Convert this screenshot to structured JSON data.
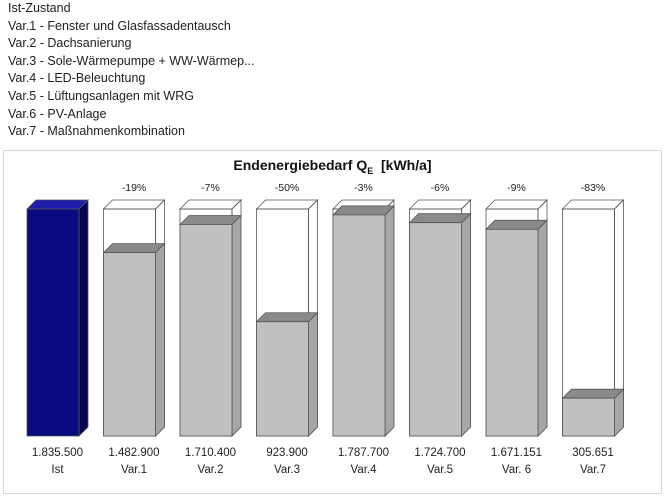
{
  "legend": [
    "Ist-Zustand",
    "Var.1 - Fenster und Glasfassadentausch",
    "Var.2 - Dachsanierung",
    "Var.3 - Sole-Wärmepumpe + WW-Wärmep...",
    "Var.4 - LED-Beleuchtung",
    "Var.5 - Lüftungsanlagen mit WRG",
    "Var.6 - PV-Anlage",
    "Var.7 - Maßnahmenkombination"
  ],
  "title": {
    "main": "Endenergiebedarf Q",
    "subscript": "E",
    "unit": "[kWh/a]"
  },
  "colors": {
    "baseline_front": "#0a0a80",
    "baseline_top": "#1e1eaa",
    "baseline_side": "#050550",
    "variant_front": "#c0c0c0",
    "variant_top": "#8a8a8a",
    "variant_side": "#a6a6a6",
    "outline": "#555555"
  },
  "chart_data": {
    "type": "bar",
    "title": "Endenergiebedarf QE [kWh/a]",
    "categories": [
      "Ist",
      "Var.1",
      "Var.2",
      "Var.3",
      "Var.4",
      "Var.5",
      "Var. 6",
      "Var.7"
    ],
    "values": [
      1835500,
      1482900,
      1710400,
      923900,
      1787700,
      1724700,
      1671151,
      305651
    ],
    "value_labels": [
      "1.835.500",
      "1.482.900",
      "1.710.400",
      "923.900",
      "1.787.700",
      "1.724.700",
      "1.671.151",
      "305.651"
    ],
    "change_labels": [
      "",
      "-19%",
      "-7%",
      "-50%",
      "-3%",
      "-6%",
      "-9%",
      "-83%"
    ],
    "ylim": [
      0,
      1835500
    ],
    "baseline_index": 0,
    "grid": false,
    "style": "3d-bars"
  }
}
